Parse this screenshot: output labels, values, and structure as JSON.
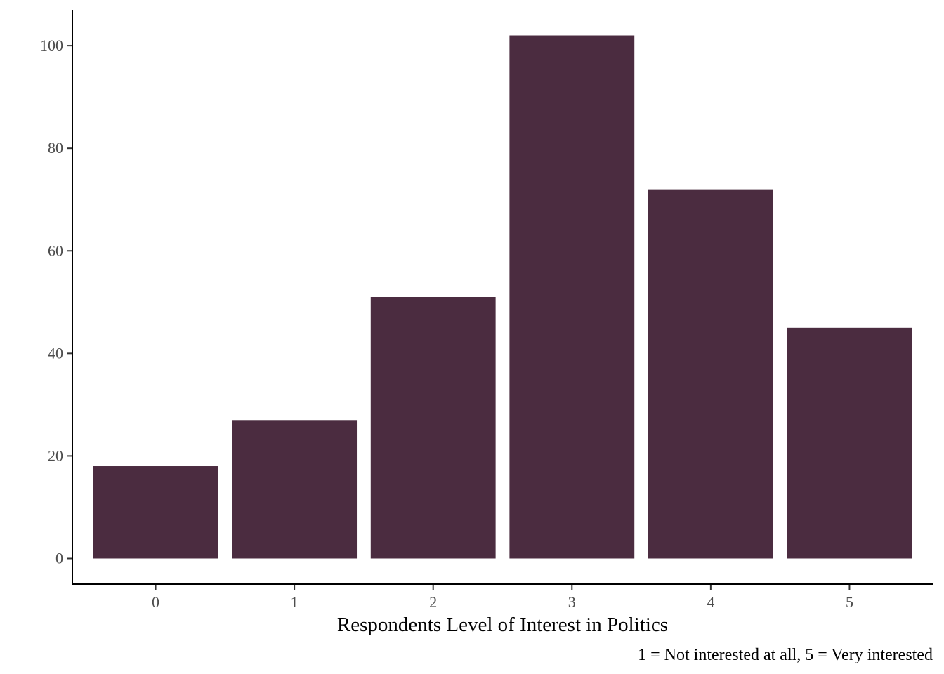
{
  "chart_data": {
    "type": "bar",
    "categories": [
      "0",
      "1",
      "2",
      "3",
      "4",
      "5"
    ],
    "values": [
      18,
      27,
      51,
      102,
      72,
      45
    ],
    "xlabel": "Respondents Level of Interest in Politics",
    "ylabel": "",
    "caption": "1 = Not interested at all, 5 = Very interested",
    "ylim": [
      -5,
      107
    ],
    "yticks": [
      0,
      20,
      40,
      60,
      80,
      100
    ],
    "bar_color": "#4b2c40",
    "grid": false,
    "legend": "none"
  }
}
